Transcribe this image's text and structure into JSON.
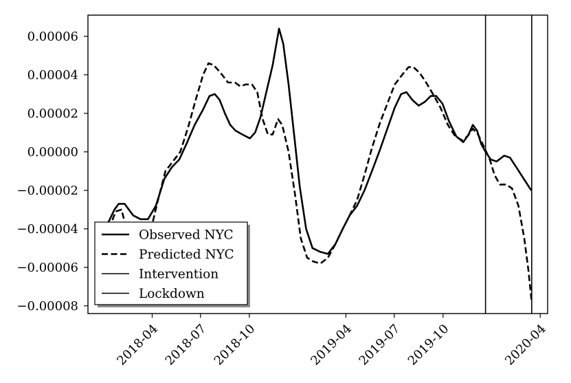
{
  "chart_data": {
    "type": "line",
    "title": "",
    "xlabel": "",
    "ylabel": "",
    "xlim": [
      "2017-12-01",
      "2020-04-15"
    ],
    "ylim": [
      -8.4e-05,
      7.1e-05
    ],
    "grid": false,
    "legend_position": "bottom-left",
    "x_ticks": [
      "2018-04",
      "2018-07",
      "2018-10",
      "2019-04",
      "2019-07",
      "2019-10",
      "2020-04"
    ],
    "y_ticks": [
      "0.00006",
      "0.00004",
      "0.00002",
      "0.00000",
      "−0.00002",
      "−0.00004",
      "−0.00006",
      "−0.00008"
    ],
    "y_tick_values": [
      6e-05,
      4e-05,
      2e-05,
      0.0,
      -2e-05,
      -4e-05,
      -6e-05,
      -8e-05
    ],
    "series": [
      {
        "name": "Observed NYC",
        "style": "solid",
        "points": [
          [
            "2018-01-06",
            -3.8e-05
          ],
          [
            "2018-01-20",
            -3e-05
          ],
          [
            "2018-01-28",
            -2.7e-05
          ],
          [
            "2018-02-08",
            -2.7e-05
          ],
          [
            "2018-02-24",
            -3.3e-05
          ],
          [
            "2018-03-10",
            -3.5e-05
          ],
          [
            "2018-03-24",
            -3.5e-05
          ],
          [
            "2018-04-08",
            -2.8e-05
          ],
          [
            "2018-04-24",
            -1.4e-05
          ],
          [
            "2018-05-08",
            -8e-06
          ],
          [
            "2018-05-22",
            -4e-06
          ],
          [
            "2018-06-06",
            5e-06
          ],
          [
            "2018-06-20",
            1.4e-05
          ],
          [
            "2018-07-06",
            2.2e-05
          ],
          [
            "2018-07-18",
            2.9e-05
          ],
          [
            "2018-07-28",
            3e-05
          ],
          [
            "2018-08-06",
            2.7e-05
          ],
          [
            "2018-08-16",
            2e-05
          ],
          [
            "2018-08-26",
            1.4e-05
          ],
          [
            "2018-09-05",
            1.1e-05
          ],
          [
            "2018-09-18",
            9e-06
          ],
          [
            "2018-10-02",
            7e-06
          ],
          [
            "2018-10-12",
            1e-05
          ],
          [
            "2018-10-22",
            1.8e-05
          ],
          [
            "2018-11-02",
            3.1e-05
          ],
          [
            "2018-11-14",
            4.5e-05
          ],
          [
            "2018-11-26",
            6.4e-05
          ],
          [
            "2018-12-04",
            5.6e-05
          ],
          [
            "2018-12-14",
            3.5e-05
          ],
          [
            "2018-12-24",
            1e-05
          ],
          [
            "2019-01-04",
            -1.8e-05
          ],
          [
            "2019-01-16",
            -4e-05
          ],
          [
            "2019-01-28",
            -5e-05
          ],
          [
            "2019-02-12",
            -5.2e-05
          ],
          [
            "2019-02-26",
            -5.3e-05
          ],
          [
            "2019-03-12",
            -4.8e-05
          ],
          [
            "2019-03-26",
            -4e-05
          ],
          [
            "2019-04-08",
            -3.3e-05
          ],
          [
            "2019-04-22",
            -2.8e-05
          ],
          [
            "2019-05-06",
            -2e-05
          ],
          [
            "2019-05-20",
            -1e-05
          ],
          [
            "2019-06-04",
            1e-06
          ],
          [
            "2019-06-18",
            1.2e-05
          ],
          [
            "2019-07-02",
            2.3e-05
          ],
          [
            "2019-07-14",
            3e-05
          ],
          [
            "2019-07-24",
            3.1e-05
          ],
          [
            "2019-08-04",
            2.7e-05
          ],
          [
            "2019-08-16",
            2.4e-05
          ],
          [
            "2019-08-28",
            2.6e-05
          ],
          [
            "2019-09-08",
            2.9e-05
          ],
          [
            "2019-09-18",
            2.9e-05
          ],
          [
            "2019-09-30",
            2.5e-05
          ],
          [
            "2019-10-12",
            1.6e-05
          ],
          [
            "2019-10-26",
            8e-06
          ],
          [
            "2019-11-08",
            5e-06
          ],
          [
            "2019-11-18",
            9e-06
          ],
          [
            "2019-11-26",
            1.4e-05
          ],
          [
            "2019-12-04",
            1.1e-05
          ],
          [
            "2019-12-12",
            4e-06
          ],
          [
            "2019-12-20",
            0.0
          ],
          [
            "2019-12-30",
            -4e-06
          ],
          [
            "2020-01-10",
            -5e-06
          ],
          [
            "2020-01-24",
            -2e-06
          ],
          [
            "2020-02-04",
            -3e-06
          ],
          [
            "2020-02-16",
            -8e-06
          ],
          [
            "2020-03-01",
            -1.4e-05
          ],
          [
            "2020-03-15",
            -2e-05
          ]
        ]
      },
      {
        "name": "Predicted NYC",
        "style": "dashed",
        "points": [
          [
            "2018-01-10",
            -4e-05
          ],
          [
            "2018-01-22",
            -3.1e-05
          ],
          [
            "2018-02-02",
            -3e-05
          ],
          [
            "2018-02-10",
            -3.8e-05
          ],
          [
            "2018-02-20",
            -4.5e-05
          ],
          [
            "2018-03-05",
            -4.8e-05
          ],
          [
            "2018-03-18",
            -4.6e-05
          ],
          [
            "2018-03-30",
            -4e-05
          ],
          [
            "2018-04-12",
            -2.5e-05
          ],
          [
            "2018-04-26",
            -1e-05
          ],
          [
            "2018-05-10",
            -5e-06
          ],
          [
            "2018-05-24",
            0.0
          ],
          [
            "2018-06-08",
            1.3e-05
          ],
          [
            "2018-06-22",
            2.7e-05
          ],
          [
            "2018-07-06",
            4e-05
          ],
          [
            "2018-07-16",
            4.6e-05
          ],
          [
            "2018-07-26",
            4.5e-05
          ],
          [
            "2018-08-08",
            4.1e-05
          ],
          [
            "2018-08-22",
            3.6e-05
          ],
          [
            "2018-09-04",
            3.6e-05
          ],
          [
            "2018-09-14",
            3.4e-05
          ],
          [
            "2018-09-24",
            3.5e-05
          ],
          [
            "2018-10-06",
            3.5e-05
          ],
          [
            "2018-10-16",
            3.1e-05
          ],
          [
            "2018-10-26",
            1.7e-05
          ],
          [
            "2018-11-05",
            9e-06
          ],
          [
            "2018-11-14",
            9e-06
          ],
          [
            "2018-11-24",
            1.7e-05
          ],
          [
            "2018-12-02",
            1.4e-05
          ],
          [
            "2018-12-14",
            0.0
          ],
          [
            "2018-12-26",
            -2.2e-05
          ],
          [
            "2019-01-06",
            -4.5e-05
          ],
          [
            "2019-01-18",
            -5.5e-05
          ],
          [
            "2019-01-30",
            -5.7e-05
          ],
          [
            "2019-02-12",
            -5.8e-05
          ],
          [
            "2019-02-26",
            -5.5e-05
          ],
          [
            "2019-03-12",
            -4.8e-05
          ],
          [
            "2019-03-26",
            -4e-05
          ],
          [
            "2019-04-08",
            -3.3e-05
          ],
          [
            "2019-04-22",
            -2.5e-05
          ],
          [
            "2019-05-06",
            -1.2e-05
          ],
          [
            "2019-05-20",
            2e-06
          ],
          [
            "2019-06-04",
            1.5e-05
          ],
          [
            "2019-06-18",
            2.5e-05
          ],
          [
            "2019-07-02",
            3.5e-05
          ],
          [
            "2019-07-16",
            4e-05
          ],
          [
            "2019-07-28",
            4.4e-05
          ],
          [
            "2019-08-06",
            4.4e-05
          ],
          [
            "2019-08-18",
            4.1e-05
          ],
          [
            "2019-08-30",
            3.6e-05
          ],
          [
            "2019-09-12",
            3e-05
          ],
          [
            "2019-09-26",
            2.3e-05
          ],
          [
            "2019-10-10",
            1.4e-05
          ],
          [
            "2019-10-24",
            8e-06
          ],
          [
            "2019-11-06",
            6e-06
          ],
          [
            "2019-11-16",
            8e-06
          ],
          [
            "2019-11-26",
            1.2e-05
          ],
          [
            "2019-12-06",
            9e-06
          ],
          [
            "2019-12-18",
            2e-06
          ],
          [
            "2019-12-28",
            -4e-06
          ],
          [
            "2020-01-06",
            -1.2e-05
          ],
          [
            "2020-01-16",
            -1.7e-05
          ],
          [
            "2020-01-28",
            -1.7e-05
          ],
          [
            "2020-02-08",
            -1.9e-05
          ],
          [
            "2020-02-20",
            -2.8e-05
          ],
          [
            "2020-03-02",
            -4.5e-05
          ],
          [
            "2020-03-10",
            -6.2e-05
          ],
          [
            "2020-03-16",
            -7.8e-05
          ]
        ]
      },
      {
        "name": "Intervention",
        "style": "vline",
        "x": "2019-12-20"
      },
      {
        "name": "Lockdown",
        "style": "vline",
        "x": "2020-03-16"
      }
    ]
  }
}
